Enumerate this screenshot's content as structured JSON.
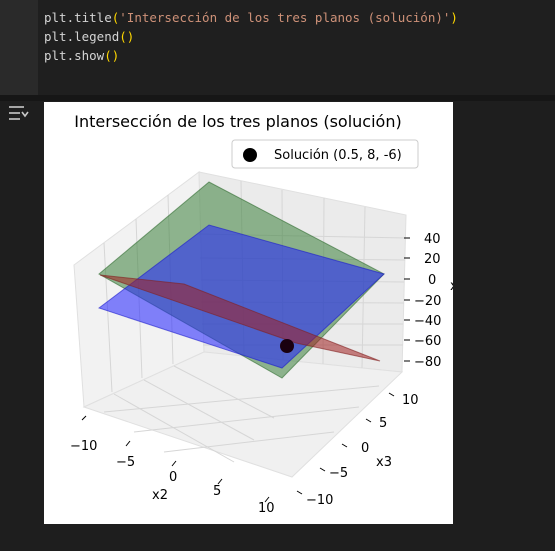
{
  "code": {
    "line1_prefix": "plt.title",
    "line1_open": "(",
    "line1_string": "'Intersección de los tres planos (solución)'",
    "line1_close": ")",
    "line2_prefix": "plt.legend",
    "line2_parens": "()",
    "line3_prefix": "plt.show",
    "line3_parens": "()"
  },
  "output_icon": "output-menu-icon",
  "colors": {
    "plane_green": "#3a7f3a",
    "plane_blue": "#2020ff",
    "plane_red": "#a02020",
    "solution_point": "#000000"
  },
  "chart_data": {
    "type": "scatter",
    "title": "Intersección de los tres planos (solución)",
    "xlabel": "x2",
    "ylabel": "x3",
    "zlabel": "x",
    "x_ticks": [
      "−10",
      "−5",
      "0",
      "5",
      "10"
    ],
    "y_ticks": [
      "10",
      "5",
      "0",
      "−5",
      "−10"
    ],
    "z_ticks": [
      "40",
      "20",
      "0",
      "−20",
      "−40",
      "−60",
      "−80"
    ],
    "legend": "Solución (0.5, 8, -6)",
    "point": {
      "x2": 0.5,
      "x3": 8,
      "x": -6
    },
    "surfaces": [
      "green plane",
      "blue plane",
      "red plane"
    ],
    "grid": true,
    "legend_placement": "top-right"
  }
}
